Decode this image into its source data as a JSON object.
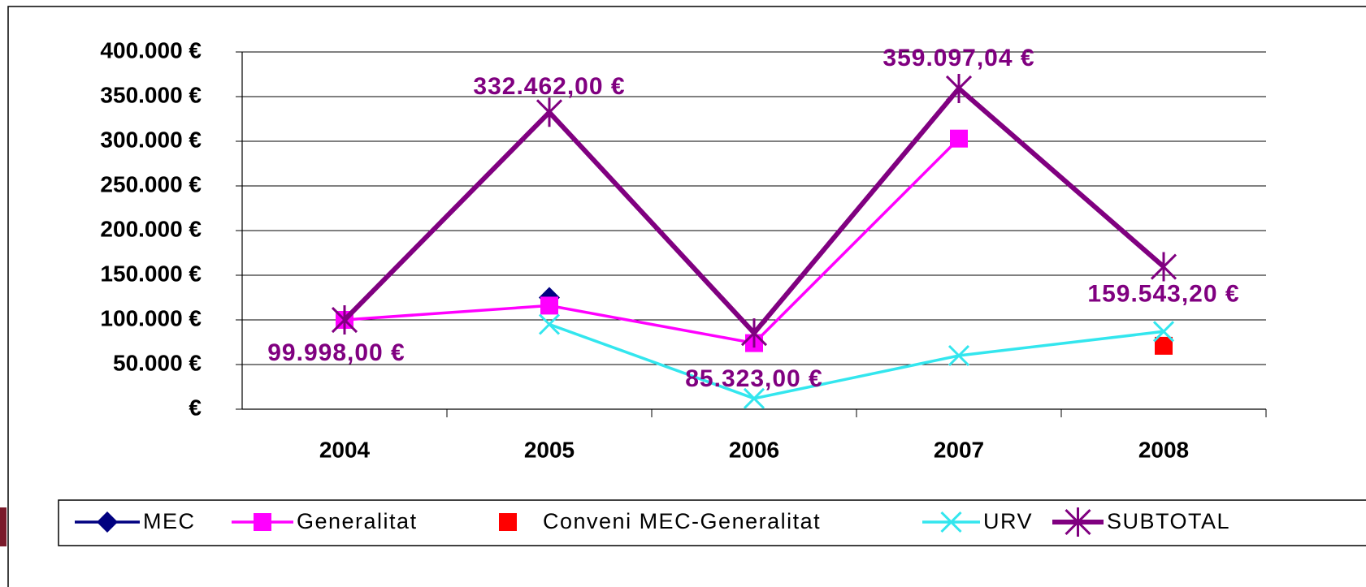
{
  "chart_data": {
    "type": "line",
    "categories": [
      "2004",
      "2005",
      "2006",
      "2007",
      "2008"
    ],
    "ylim": [
      0,
      400000
    ],
    "yticks": [
      {
        "value": 0,
        "label": "€"
      },
      {
        "value": 50000,
        "label": "50.000 €"
      },
      {
        "value": 100000,
        "label": "100.000 €"
      },
      {
        "value": 150000,
        "label": "150.000 €"
      },
      {
        "value": 200000,
        "label": "200.000 €"
      },
      {
        "value": 250000,
        "label": "250.000 €"
      },
      {
        "value": 300000,
        "label": "300.000 €"
      },
      {
        "value": 350000,
        "label": "350.000 €"
      },
      {
        "value": 400000,
        "label": "400.000 €"
      }
    ],
    "grid": true,
    "legend": "bottom",
    "series": [
      {
        "name": "MEC",
        "color": "#000080",
        "marker": "diamond",
        "line": true,
        "values": [
          null,
          125000,
          null,
          null,
          null
        ]
      },
      {
        "name": "Generalitat",
        "color": "#ff00ff",
        "marker": "square",
        "line": true,
        "values": [
          99998,
          116000,
          74000,
          303000,
          null
        ]
      },
      {
        "name": "Conveni MEC-Generalitat",
        "color": "#ff0000",
        "marker": "square",
        "line": false,
        "values": [
          null,
          null,
          null,
          null,
          71000
        ]
      },
      {
        "name": "URV",
        "color": "#33e6ee",
        "marker": "x",
        "line": true,
        "values": [
          null,
          95000,
          12000,
          60000,
          87000
        ]
      },
      {
        "name": "SUBTOTAL",
        "color": "#800080",
        "marker": "star",
        "line": true,
        "values": [
          99998,
          332462,
          85323,
          359097.04,
          159543.2
        ],
        "value_labels": [
          "99.998,00 €",
          "332.462,00 €",
          "85.323,00 €",
          "359.097,04 €",
          "159.543,20 €"
        ]
      }
    ]
  }
}
